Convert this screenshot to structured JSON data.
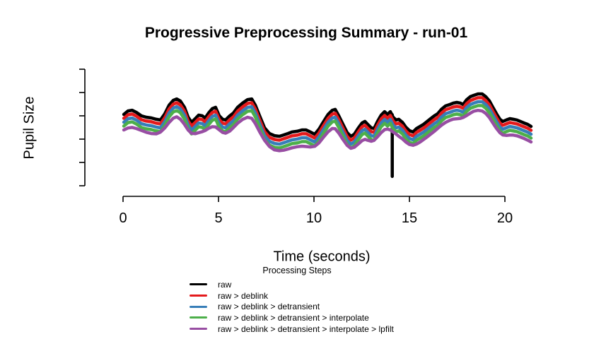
{
  "chart_data": {
    "type": "line",
    "title": "Progressive Preprocessing Summary - run-01",
    "xlabel": "Time (seconds)",
    "ylabel": "Pupil Size",
    "legend_title": "Processing Steps",
    "legend_position": "bottom",
    "grid": false,
    "xlim": [
      0,
      21.4
    ],
    "ylim": [
      0,
      1
    ],
    "x_ticks": [
      0,
      5,
      10,
      15,
      20
    ],
    "y_ticks": [
      0,
      0.2,
      0.4,
      0.6,
      0.8,
      1.0
    ],
    "y_tick_labels_shown": false,
    "y_units": "arbitrary (axis unlabeled)",
    "x": [
      0.04,
      0.26,
      0.48,
      0.7,
      0.96,
      1.22,
      1.48,
      1.74,
      1.96,
      2.19,
      2.41,
      2.63,
      2.81,
      3.0,
      3.22,
      3.41,
      3.59,
      3.78,
      3.96,
      4.15,
      4.3,
      4.48,
      4.67,
      4.85,
      5.04,
      5.22,
      5.37,
      5.59,
      5.78,
      6.0,
      6.26,
      6.52,
      6.74,
      6.93,
      7.15,
      7.41,
      7.67,
      7.93,
      8.19,
      8.41,
      8.63,
      8.85,
      9.11,
      9.37,
      9.59,
      9.81,
      10.04,
      10.26,
      10.48,
      10.74,
      10.96,
      11.11,
      11.3,
      11.52,
      11.74,
      11.93,
      12.11,
      12.33,
      12.52,
      12.67,
      12.81,
      13.0,
      13.15,
      13.33,
      13.52,
      13.7,
      13.85,
      14.0,
      14.15,
      14.3,
      14.44,
      14.63,
      14.81,
      15.0,
      15.19,
      15.37,
      15.56,
      15.74,
      15.93,
      16.11,
      16.3,
      16.48,
      16.67,
      16.89,
      17.11,
      17.3,
      17.48,
      17.67,
      17.81,
      18.0,
      18.19,
      18.37,
      18.59,
      18.81,
      19.0,
      19.19,
      19.37,
      19.56,
      19.74,
      19.89,
      20.07,
      20.26,
      20.44,
      20.63,
      20.81,
      21.0,
      21.19,
      21.37
    ],
    "base_values": [
      0.612,
      0.642,
      0.648,
      0.63,
      0.6,
      0.588,
      0.582,
      0.57,
      0.564,
      0.618,
      0.691,
      0.733,
      0.745,
      0.727,
      0.673,
      0.588,
      0.545,
      0.576,
      0.606,
      0.6,
      0.582,
      0.624,
      0.661,
      0.673,
      0.6,
      0.57,
      0.564,
      0.6,
      0.624,
      0.673,
      0.709,
      0.739,
      0.745,
      0.691,
      0.6,
      0.497,
      0.448,
      0.43,
      0.424,
      0.436,
      0.448,
      0.461,
      0.467,
      0.479,
      0.479,
      0.461,
      0.442,
      0.485,
      0.545,
      0.612,
      0.648,
      0.655,
      0.6,
      0.527,
      0.455,
      0.424,
      0.442,
      0.497,
      0.539,
      0.552,
      0.527,
      0.497,
      0.491,
      0.552,
      0.606,
      0.636,
      0.612,
      0.636,
      0.588,
      0.564,
      0.57,
      0.545,
      0.503,
      0.473,
      0.461,
      0.491,
      0.509,
      0.527,
      0.552,
      0.576,
      0.6,
      0.618,
      0.655,
      0.685,
      0.697,
      0.709,
      0.715,
      0.709,
      0.697,
      0.739,
      0.764,
      0.776,
      0.788,
      0.788,
      0.764,
      0.727,
      0.673,
      0.618,
      0.57,
      0.552,
      0.564,
      0.576,
      0.57,
      0.564,
      0.552,
      0.539,
      0.527,
      0.509
    ],
    "series_note": "each series plots base_values plus its vertical offset; raw additionally contains the blink spike annotation",
    "series": [
      {
        "name": "raw",
        "color": "#000000",
        "offset": 0
      },
      {
        "name": "raw > deblink",
        "color": "#E41A1C",
        "offset": -0.033
      },
      {
        "name": "raw > deblink > detransient",
        "color": "#377EB8",
        "offset": -0.067
      },
      {
        "name": "raw > deblink > detransient > interpolate",
        "color": "#4DAF4A",
        "offset": -0.1
      },
      {
        "name": "raw > deblink > detransient > interpolate > lpfilt",
        "color": "#984EA3",
        "offset": -0.133,
        "smoothed": true
      }
    ],
    "annotations": [
      {
        "type": "spike",
        "series": "raw",
        "t": 14.1,
        "from_value": 0.61,
        "to_value": 0.08,
        "description": "downward blink artifact present only in raw trace"
      }
    ]
  }
}
